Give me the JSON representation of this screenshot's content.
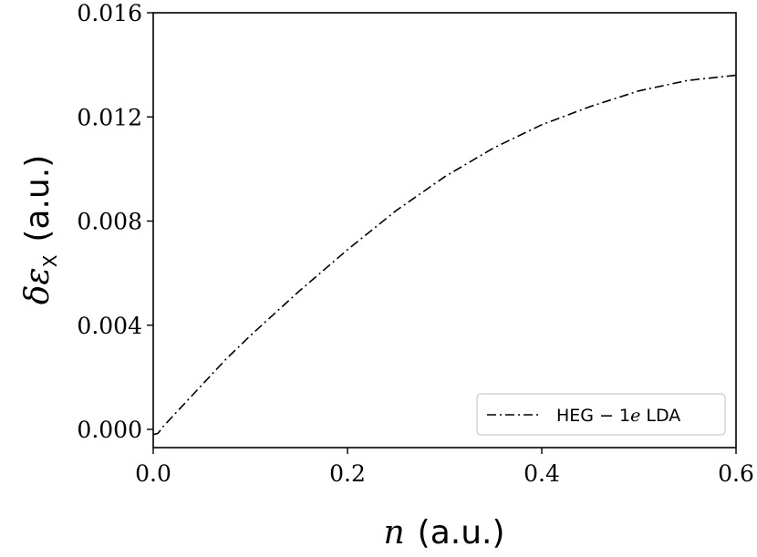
{
  "chart_data": {
    "type": "line",
    "title": "",
    "xlabel": {
      "symbol": "n",
      "unit": "(a.u.)"
    },
    "ylabel": {
      "symbol": "δε",
      "subscript": "X",
      "unit": "(a.u.)"
    },
    "xlim": [
      0.0,
      0.6
    ],
    "ylim": [
      -0.0007,
      0.016
    ],
    "xticks": [
      0.0,
      0.2,
      0.4,
      0.6
    ],
    "xtick_labels": [
      "0.0",
      "0.2",
      "0.4",
      "0.6"
    ],
    "yticks": [
      0.0,
      0.004,
      0.008,
      0.012,
      0.016
    ],
    "ytick_labels": [
      "0.000",
      "0.004",
      "0.008",
      "0.012",
      "0.016"
    ],
    "grid": false,
    "legend_position": "lower-right",
    "series": [
      {
        "name": "HEG − 1e LDA",
        "name_parts": {
          "prefix": "HEG − 1",
          "math": "e",
          "suffix": " LDA"
        },
        "line_style": "dashdot",
        "color": "#000000",
        "x": [
          0.0,
          0.005,
          0.01,
          0.02,
          0.03,
          0.04,
          0.05,
          0.075,
          0.1,
          0.15,
          0.2,
          0.25,
          0.3,
          0.35,
          0.4,
          0.45,
          0.5,
          0.55,
          0.6
        ],
        "y": [
          -0.0002,
          -0.00015,
          0.0001,
          0.0005,
          0.0009,
          0.0013,
          0.0017,
          0.0027,
          0.0036,
          0.0053,
          0.0069,
          0.0084,
          0.0097,
          0.0108,
          0.0117,
          0.0124,
          0.013,
          0.0134,
          0.0136
        ]
      }
    ]
  }
}
